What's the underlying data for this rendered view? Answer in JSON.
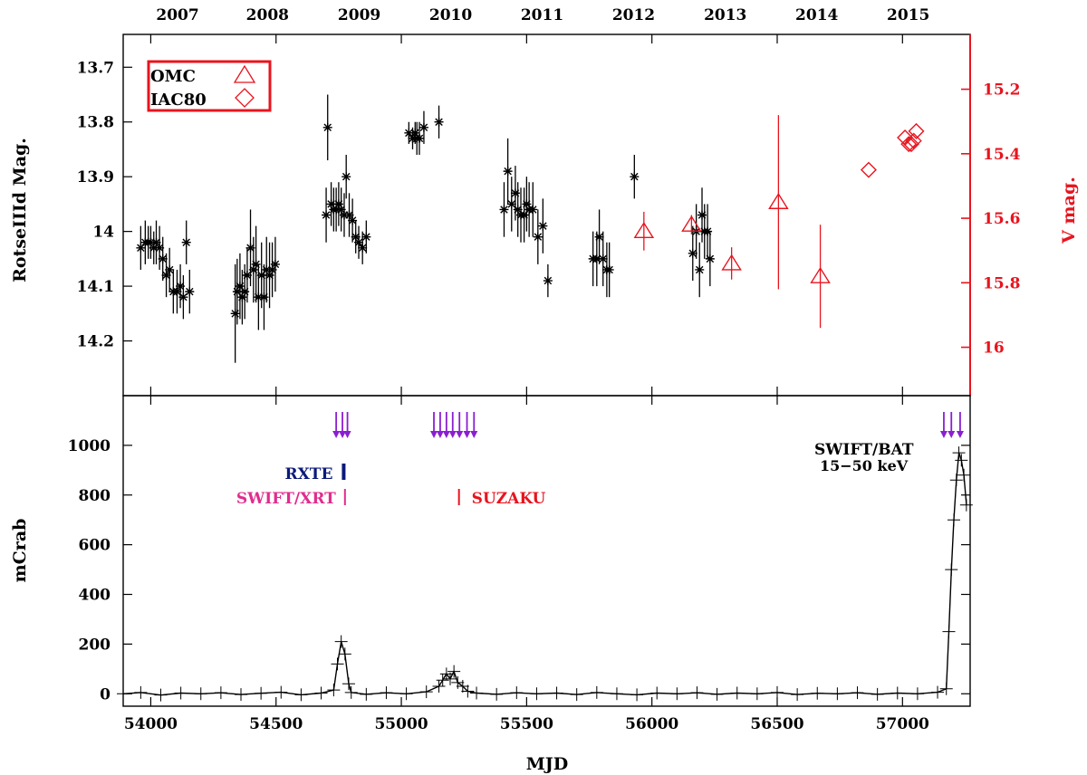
{
  "chart_data": {
    "type": "scatter",
    "x_axis": {
      "label": "MJD",
      "range": [
        53890,
        57270
      ],
      "ticks": [
        54000,
        54500,
        55000,
        55500,
        56000,
        56500,
        57000
      ],
      "tick_labels": [
        "54000",
        "54500",
        "55000",
        "55500",
        "56000",
        "56500",
        "57000"
      ]
    },
    "top_axis": {
      "year_labels": [
        "2007",
        "2008",
        "2009",
        "2010",
        "2011",
        "2012",
        "2013",
        "2014",
        "2015"
      ],
      "year_positions_mjd": [
        54107,
        54466,
        54832,
        55197,
        55562,
        55927,
        56293,
        56658,
        57023
      ]
    },
    "panels": [
      {
        "name": "optical",
        "left_axis": {
          "label": "RotseIIId Mag.",
          "range_top": 13.64,
          "range_bottom": 14.3,
          "inverted": true,
          "ticks": [
            13.7,
            13.8,
            13.9,
            14.0,
            14.1,
            14.2
          ],
          "tick_labels": [
            "13.7",
            "13.8",
            "13.9",
            "14",
            "14.1",
            "14.2"
          ]
        },
        "right_axis": {
          "label": "V mag.",
          "color": "#e8141e",
          "range_top": 15.03,
          "range_bottom": 16.15,
          "inverted": true,
          "ticks": [
            15.2,
            15.4,
            15.6,
            15.8,
            16.0
          ],
          "tick_labels": [
            "15.2",
            "15.4",
            "15.6",
            "15.8",
            "16"
          ]
        },
        "legend": {
          "placement": "top-left",
          "entries": [
            {
              "label": "OMC",
              "marker": "triangle"
            },
            {
              "label": "IAC80",
              "marker": "diamond"
            }
          ]
        },
        "series": [
          {
            "name": "RotseIIId",
            "marker": "star",
            "axis": "left",
            "color": "#000000",
            "points": [
              [
                53960,
                14.03,
                0.04
              ],
              [
                53978,
                14.02,
                0.04
              ],
              [
                53990,
                14.02,
                0.03
              ],
              [
                54000,
                14.02,
                0.03
              ],
              [
                54012,
                14.03,
                0.03
              ],
              [
                54022,
                14.02,
                0.04
              ],
              [
                54035,
                14.03,
                0.04
              ],
              [
                54048,
                14.05,
                0.04
              ],
              [
                54062,
                14.08,
                0.04
              ],
              [
                54075,
                14.07,
                0.04
              ],
              [
                54090,
                14.11,
                0.04
              ],
              [
                54105,
                14.11,
                0.04
              ],
              [
                54118,
                14.1,
                0.04
              ],
              [
                54130,
                14.12,
                0.04
              ],
              [
                54142,
                14.02,
                0.04
              ],
              [
                54155,
                14.11,
                0.04
              ],
              [
                54337,
                14.15,
                0.09
              ],
              [
                54345,
                14.11,
                0.06
              ],
              [
                54356,
                14.1,
                0.06
              ],
              [
                54365,
                14.12,
                0.05
              ],
              [
                54375,
                14.11,
                0.05
              ],
              [
                54385,
                14.08,
                0.05
              ],
              [
                54398,
                14.03,
                0.07
              ],
              [
                54410,
                14.07,
                0.06
              ],
              [
                54420,
                14.06,
                0.07
              ],
              [
                54430,
                14.12,
                0.06
              ],
              [
                54442,
                14.08,
                0.06
              ],
              [
                54452,
                14.12,
                0.06
              ],
              [
                54462,
                14.07,
                0.06
              ],
              [
                54474,
                14.08,
                0.06
              ],
              [
                54485,
                14.07,
                0.05
              ],
              [
                54497,
                14.06,
                0.05
              ],
              [
                54700,
                13.97,
                0.05
              ],
              [
                54706,
                13.81,
                0.06
              ],
              [
                54720,
                13.95,
                0.04
              ],
              [
                54730,
                13.96,
                0.04
              ],
              [
                54740,
                13.96,
                0.04
              ],
              [
                54750,
                13.95,
                0.04
              ],
              [
                54760,
                13.96,
                0.04
              ],
              [
                54772,
                13.97,
                0.04
              ],
              [
                54780,
                13.9,
                0.04
              ],
              [
                54792,
                13.97,
                0.04
              ],
              [
                54805,
                13.98,
                0.04
              ],
              [
                54818,
                14.01,
                0.03
              ],
              [
                54830,
                14.02,
                0.03
              ],
              [
                54845,
                14.03,
                0.03
              ],
              [
                54860,
                14.01,
                0.03
              ],
              [
                55030,
                13.82,
                0.02
              ],
              [
                55045,
                13.83,
                0.02
              ],
              [
                55055,
                13.82,
                0.02
              ],
              [
                55062,
                13.83,
                0.03
              ],
              [
                55072,
                13.83,
                0.03
              ],
              [
                55090,
                13.81,
                0.03
              ],
              [
                55150,
                13.8,
                0.03
              ],
              [
                55410,
                13.96,
                0.05
              ],
              [
                55425,
                13.89,
                0.06
              ],
              [
                55440,
                13.95,
                0.05
              ],
              [
                55455,
                13.93,
                0.05
              ],
              [
                55465,
                13.96,
                0.05
              ],
              [
                55477,
                13.97,
                0.05
              ],
              [
                55490,
                13.97,
                0.05
              ],
              [
                55500,
                13.95,
                0.05
              ],
              [
                55510,
                13.96,
                0.05
              ],
              [
                55525,
                13.96,
                0.05
              ],
              [
                55545,
                14.01,
                0.05
              ],
              [
                55565,
                13.99,
                0.05
              ],
              [
                55585,
                14.09,
                0.03
              ],
              [
                55765,
                14.05,
                0.05
              ],
              [
                55780,
                14.05,
                0.05
              ],
              [
                55790,
                14.01,
                0.05
              ],
              [
                55805,
                14.05,
                0.05
              ],
              [
                55820,
                14.07,
                0.05
              ],
              [
                55830,
                14.07,
                0.05
              ],
              [
                55930,
                13.9,
                0.04
              ],
              [
                56163,
                14.04,
                0.05
              ],
              [
                56177,
                14.0,
                0.05
              ],
              [
                56190,
                14.07,
                0.05
              ],
              [
                56200,
                13.97,
                0.05
              ],
              [
                56210,
                14.0,
                0.05
              ],
              [
                56222,
                14.0,
                0.05
              ],
              [
                56232,
                14.05,
                0.05
              ]
            ]
          },
          {
            "name": "OMC",
            "marker": "triangle",
            "axis": "right",
            "color": "#e8141e",
            "points": [
              [
                55968,
                15.64,
                0.06
              ],
              [
                56158,
                15.62,
                0.03
              ],
              [
                56318,
                15.74,
                0.05
              ],
              [
                56505,
                15.55,
                0.27
              ],
              [
                56672,
                15.78,
                0.16
              ]
            ]
          },
          {
            "name": "IAC80",
            "marker": "diamond",
            "axis": "right",
            "color": "#e8141e",
            "points": [
              [
                56865,
                15.45,
                0.0
              ],
              [
                57010,
                15.35,
                0.0
              ],
              [
                57025,
                15.37,
                0.0
              ],
              [
                57035,
                15.37,
                0.0
              ],
              [
                57045,
                15.36,
                0.0
              ],
              [
                57055,
                15.33,
                0.0
              ]
            ]
          }
        ]
      },
      {
        "name": "xray",
        "left_axis": {
          "label": "mCrab",
          "range": [
            -50,
            1200
          ],
          "ticks": [
            0,
            200,
            400,
            600,
            800,
            1000
          ],
          "tick_labels": [
            "0",
            "200",
            "400",
            "600",
            "800",
            "1000"
          ]
        },
        "series": [
          {
            "name": "SWIFT/BAT",
            "marker": "plus",
            "color": "#000000",
            "x": [
              53890,
              53960,
              54040,
              54120,
              54200,
              54280,
              54360,
              54440,
              54520,
              54600,
              54680,
              54730,
              54745,
              54760,
              54775,
              54790,
              54800,
              54860,
              54940,
              55020,
              55100,
              55150,
              55165,
              55180,
              55195,
              55210,
              55225,
              55245,
              55265,
              55300,
              55380,
              55460,
              55540,
              55620,
              55700,
              55780,
              55860,
              55940,
              56020,
              56100,
              56180,
              56260,
              56340,
              56420,
              56500,
              56580,
              56660,
              56740,
              56820,
              56900,
              56980,
              57060,
              57140,
              57175,
              57185,
              57195,
              57205,
              57215,
              57225,
              57235,
              57245,
              57255
            ],
            "y": [
              0,
              5,
              -5,
              3,
              0,
              4,
              -3,
              2,
              6,
              -4,
              3,
              15,
              120,
              210,
              160,
              40,
              5,
              -2,
              4,
              0,
              8,
              30,
              55,
              80,
              60,
              90,
              45,
              30,
              10,
              3,
              -2,
              4,
              0,
              3,
              -3,
              5,
              0,
              -4,
              3,
              0,
              4,
              -2,
              3,
              0,
              5,
              -3,
              2,
              0,
              4,
              -2,
              3,
              0,
              6,
              20,
              250,
              500,
              700,
              860,
              970,
              940,
              880,
              760
            ]
          }
        ],
        "observations": [
          {
            "label": "RXTE",
            "mjd": 54770,
            "color": "#0b1a7a"
          },
          {
            "label": "SWIFT/XRT",
            "mjd": 54775,
            "color": "#e02c8e"
          },
          {
            "label": "SUZAKU",
            "mjd": 55230,
            "color": "#e8141e"
          }
        ],
        "arrow_group": {
          "color": "#8a1fd1",
          "mjd": [
            54740,
            54765,
            54785,
            55130,
            55155,
            55180,
            55205,
            55232,
            55262,
            55290,
            57165,
            57195,
            57230
          ]
        },
        "annotation": {
          "line1": "SWIFT/BAT",
          "line2": "15−50 keV"
        }
      }
    ]
  }
}
